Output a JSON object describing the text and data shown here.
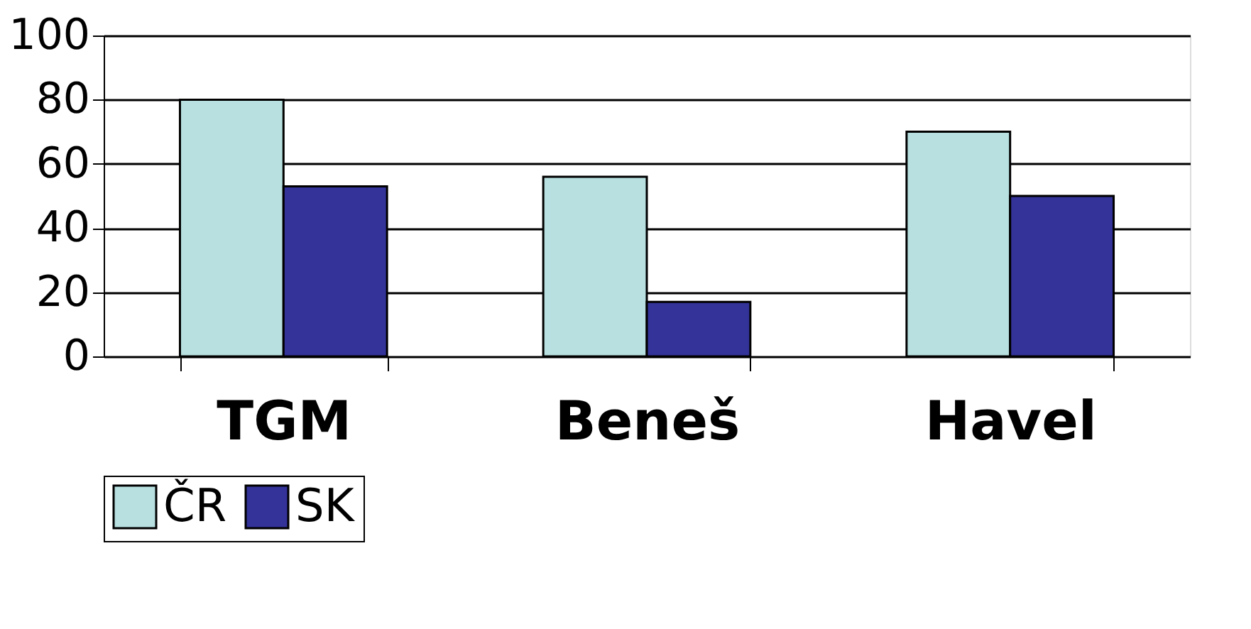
{
  "chart_data": {
    "type": "bar",
    "categories": [
      "TGM",
      "Beneš",
      "Havel"
    ],
    "series": [
      {
        "name": "ČR",
        "color": "#b8e0e0",
        "values": [
          80,
          56,
          70
        ]
      },
      {
        "name": "SK",
        "color": "#333399",
        "values": [
          53,
          17,
          50
        ]
      }
    ],
    "ylim": [
      0,
      100
    ],
    "yticks": [
      0,
      20,
      40,
      60,
      80,
      100
    ],
    "grid": "y",
    "legend": "bottom"
  }
}
